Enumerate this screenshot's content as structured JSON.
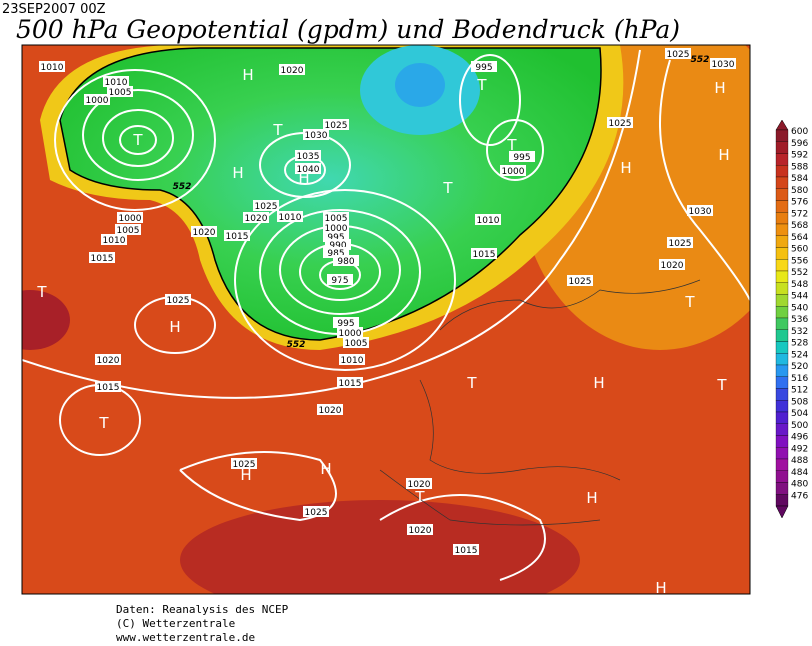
{
  "header": {
    "date": "23SEP2007 00Z",
    "title": "500 hPa Geopotential (gpdm) und Bodendruck (hPa)"
  },
  "colorbar": {
    "ticks": [
      600,
      596,
      592,
      588,
      584,
      580,
      576,
      572,
      568,
      564,
      560,
      556,
      552,
      548,
      544,
      540,
      536,
      532,
      528,
      524,
      520,
      516,
      512,
      508,
      504,
      500,
      496,
      492,
      488,
      484,
      480,
      476
    ],
    "colors": [
      "#8b1a2a",
      "#a01c28",
      "#b8242a",
      "#c8321e",
      "#d4461a",
      "#dc5a16",
      "#e36c14",
      "#e87e10",
      "#ee9010",
      "#f0a810",
      "#f5c010",
      "#f8d818",
      "#e8e818",
      "#c8e020",
      "#a0d830",
      "#70d040",
      "#40c860",
      "#20c890",
      "#18c8c0",
      "#20b8e0",
      "#2898f0",
      "#3070f0",
      "#3848e0",
      "#4030d8",
      "#5020d0",
      "#6818c8",
      "#8010c0",
      "#9010b0",
      "#a010a0",
      "#901090",
      "#801080",
      "#600860"
    ]
  },
  "map": {
    "pressure_labels": [
      1010,
      1020,
      995,
      1025,
      1030,
      1010,
      1005,
      1000,
      1025,
      1030,
      1035,
      1040,
      1025,
      995,
      1000,
      1030,
      1025,
      1020,
      1010,
      1015,
      1020,
      1000,
      1005,
      1010,
      1015,
      1005,
      1000,
      995,
      990,
      985,
      980,
      975,
      1010,
      1015,
      1025,
      1020,
      1025,
      1025,
      995,
      1000,
      1005,
      1010,
      1015,
      1020,
      1015,
      1020,
      1025,
      1020,
      1025,
      1020,
      1015
    ],
    "contour_labels": [
      552,
      552,
      552
    ],
    "centers": [
      "H",
      "H",
      "T",
      "T",
      "T",
      "T",
      "H",
      "H",
      "H",
      "H",
      "T",
      "T",
      "T",
      "H",
      "T",
      "T",
      "H",
      "T",
      "T",
      "H",
      "H",
      "T",
      "H",
      "H"
    ]
  },
  "credits": [
    "Daten: Reanalysis des NCEP",
    "(C) Wetterzentrale",
    "www.wetterzentrale.de"
  ]
}
